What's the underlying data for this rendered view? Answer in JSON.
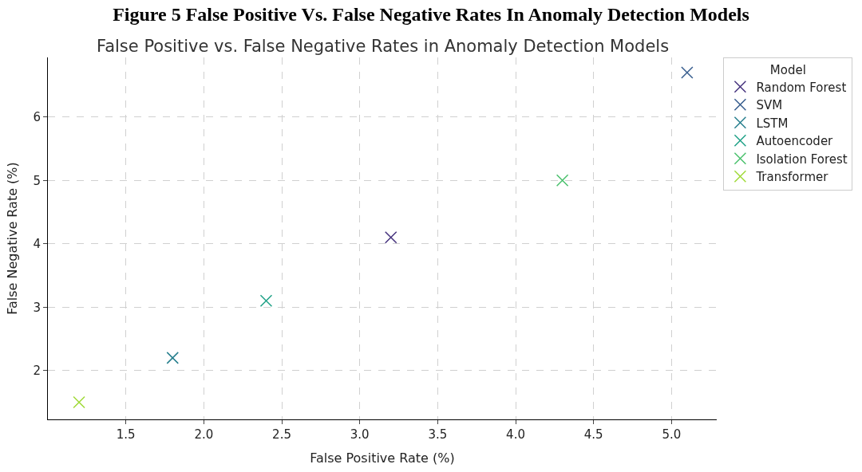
{
  "chart_data": {
    "type": "scatter",
    "title": "Figure 5 False Positive Vs. False Negative Rates In Anomaly Detection Models",
    "subtitle": "False Positive vs. False Negative Rates in Anomaly Detection Models",
    "xlabel": "False Positive Rate (%)",
    "ylabel": "False Negative Rate (%)",
    "legend_title": "Model",
    "series": [
      {
        "name": "Random Forest",
        "color": "#46337e",
        "x": [
          3.2
        ],
        "values": [
          4.1
        ]
      },
      {
        "name": "SVM",
        "color": "#365c8d",
        "x": [
          5.1
        ],
        "values": [
          6.7
        ]
      },
      {
        "name": "LSTM",
        "color": "#277f8e",
        "x": [
          1.8
        ],
        "values": [
          2.2
        ]
      },
      {
        "name": "Autoencoder",
        "color": "#1fa187",
        "x": [
          2.4
        ],
        "values": [
          3.1
        ]
      },
      {
        "name": "Isolation Forest",
        "color": "#4ac16d",
        "x": [
          4.3
        ],
        "values": [
          5.0
        ]
      },
      {
        "name": "Transformer",
        "color": "#a0da39",
        "x": [
          1.2
        ],
        "values": [
          1.5
        ]
      }
    ],
    "xlim": [
      1.0,
      5.29
    ],
    "xticks": [
      1.5,
      {
        "value": 2,
        "label": "2.0"
      },
      2.5,
      {
        "value": 3,
        "label": "3.0"
      },
      3.5,
      {
        "value": 4,
        "label": "4.0"
      },
      4.5,
      {
        "value": 5,
        "label": "5.0"
      }
    ],
    "ylim": [
      1.23,
      6.94
    ],
    "yticks": [
      2,
      3,
      4,
      5,
      6
    ],
    "grid": true,
    "legend": "top right",
    "marker": "cross"
  }
}
